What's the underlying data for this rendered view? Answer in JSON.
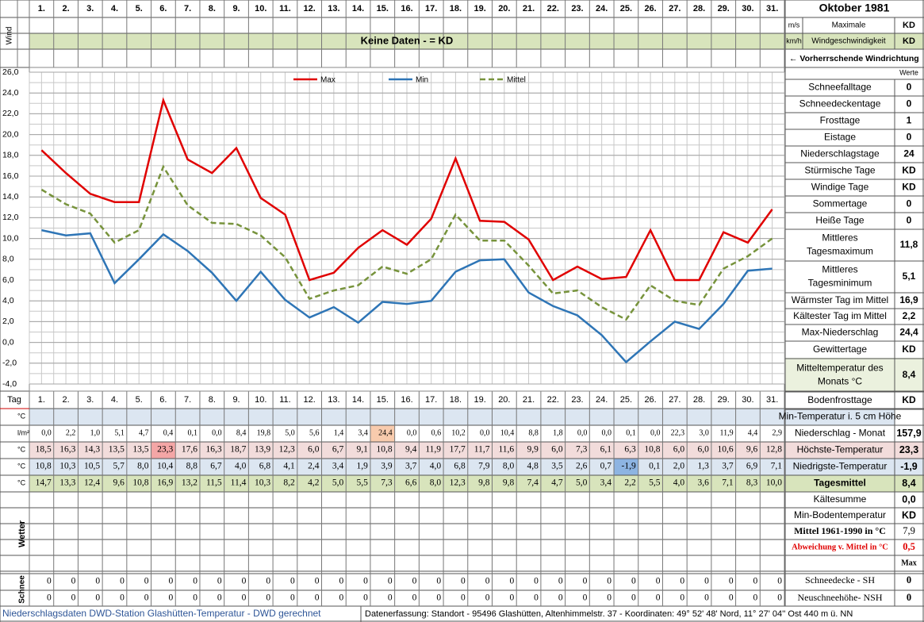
{
  "header": {
    "month": "Oktober 1981",
    "wind_row_label": "Wind",
    "no_data": "Keine Daten -  = KD",
    "wind_units": [
      "m/s",
      "km/h"
    ],
    "wind_label": [
      "Maximale",
      "Windgeschwindigkeit"
    ],
    "wind_values": [
      "KD",
      "KD"
    ],
    "wind_direction": "← Vorherrschende Windrichtung"
  },
  "chart_data": {
    "type": "line",
    "categories": [
      "1.",
      "2.",
      "3.",
      "4.",
      "5.",
      "6.",
      "7.",
      "8.",
      "9.",
      "10.",
      "11.",
      "12.",
      "13.",
      "14.",
      "15.",
      "16.",
      "17.",
      "18.",
      "19.",
      "20.",
      "21.",
      "22.",
      "23.",
      "24.",
      "25.",
      "26.",
      "27.",
      "28.",
      "29.",
      "30.",
      "31."
    ],
    "series": [
      {
        "name": "Max",
        "color": "#e00000",
        "dashed": false,
        "values": [
          18.5,
          16.3,
          14.3,
          13.5,
          13.5,
          23.3,
          17.6,
          16.3,
          18.7,
          13.9,
          12.3,
          6.0,
          6.7,
          9.1,
          10.8,
          9.4,
          11.9,
          17.7,
          11.7,
          11.6,
          9.9,
          6.0,
          7.3,
          6.1,
          6.3,
          10.8,
          6.0,
          6.0,
          10.6,
          9.6,
          12.8
        ]
      },
      {
        "name": "Min",
        "color": "#2e75b6",
        "dashed": false,
        "values": [
          10.8,
          10.3,
          10.5,
          5.7,
          8.0,
          10.4,
          8.8,
          6.7,
          4.0,
          6.8,
          4.1,
          2.4,
          3.4,
          1.9,
          3.9,
          3.7,
          4.0,
          6.8,
          7.9,
          8.0,
          4.8,
          3.5,
          2.6,
          0.7,
          -1.9,
          0.1,
          2.0,
          1.3,
          3.7,
          6.9,
          7.1
        ]
      },
      {
        "name": "Mittel",
        "color": "#77933c",
        "dashed": true,
        "values": [
          14.7,
          13.3,
          12.4,
          9.6,
          10.8,
          16.9,
          13.2,
          11.5,
          11.4,
          10.3,
          8.2,
          4.2,
          5.0,
          5.5,
          7.3,
          6.6,
          8.0,
          12.3,
          9.8,
          9.8,
          7.4,
          4.7,
          5.0,
          3.4,
          2.2,
          5.5,
          4.0,
          3.6,
          7.1,
          8.3,
          10.0
        ]
      }
    ],
    "ylim": [
      -4,
      26
    ],
    "yticks": [
      {
        "value": 26,
        "label": "26,0"
      },
      {
        "value": 24,
        "label": "24,0"
      },
      {
        "value": 22,
        "label": "22,0"
      },
      {
        "value": 20,
        "label": "20,0"
      },
      {
        "value": 18,
        "label": "18,0"
      },
      {
        "value": 16,
        "label": "16,0"
      },
      {
        "value": 14,
        "label": "14,0"
      },
      {
        "value": 12,
        "label": "12,0"
      },
      {
        "value": 10,
        "label": "10,0"
      },
      {
        "value": 8,
        "label": "8,0"
      },
      {
        "value": 6,
        "label": "6,0"
      },
      {
        "value": 4,
        "label": "4,0"
      },
      {
        "value": 2,
        "label": "2,0"
      },
      {
        "value": 0,
        "label": "0,0"
      },
      {
        "value": -2,
        "label": "-2,0"
      },
      {
        "value": -4,
        "label": "-4,0"
      }
    ],
    "grid": true,
    "legend": "top"
  },
  "table": {
    "day_label": "Tag",
    "units": [
      "°C",
      "l/m²",
      "°C",
      "°C",
      "°C"
    ],
    "precip": [
      "0,0",
      "2,2",
      "1,0",
      "5,1",
      "4,7",
      "0,4",
      "0,1",
      "0,0",
      "8,4",
      "19,8",
      "5,0",
      "5,6",
      "1,4",
      "3,4",
      "24,4",
      "0,0",
      "0,6",
      "10,2",
      "0,0",
      "10,4",
      "8,8",
      "1,8",
      "0,0",
      "0,0",
      "0,1",
      "0,0",
      "22,3",
      "3,0",
      "11,9",
      "4,4",
      "2,9"
    ],
    "max": [
      "18,5",
      "16,3",
      "14,3",
      "13,5",
      "13,5",
      "23,3",
      "17,6",
      "16,3",
      "18,7",
      "13,9",
      "12,3",
      "6,0",
      "6,7",
      "9,1",
      "10,8",
      "9,4",
      "11,9",
      "17,7",
      "11,7",
      "11,6",
      "9,9",
      "6,0",
      "7,3",
      "6,1",
      "6,3",
      "10,8",
      "6,0",
      "6,0",
      "10,6",
      "9,6",
      "12,8"
    ],
    "min": [
      "10,8",
      "10,3",
      "10,5",
      "5,7",
      "8,0",
      "10,4",
      "8,8",
      "6,7",
      "4,0",
      "6,8",
      "4,1",
      "2,4",
      "3,4",
      "1,9",
      "3,9",
      "3,7",
      "4,0",
      "6,8",
      "7,9",
      "8,0",
      "4,8",
      "3,5",
      "2,6",
      "0,7",
      "-1,9",
      "0,1",
      "2,0",
      "1,3",
      "3,7",
      "6,9",
      "7,1"
    ],
    "mean": [
      "14,7",
      "13,3",
      "12,4",
      "9,6",
      "10,8",
      "16,9",
      "13,2",
      "11,5",
      "11,4",
      "10,3",
      "8,2",
      "4,2",
      "5,0",
      "5,5",
      "7,3",
      "6,6",
      "8,0",
      "12,3",
      "9,8",
      "9,8",
      "7,4",
      "4,7",
      "5,0",
      "3,4",
      "2,2",
      "5,5",
      "4,0",
      "3,6",
      "7,1",
      "8,3",
      "10,0"
    ],
    "weather_label": "Wetter",
    "snow_label": "Schnee",
    "snow_depth": [
      0,
      0,
      0,
      0,
      0,
      0,
      0,
      0,
      0,
      0,
      0,
      0,
      0,
      0,
      0,
      0,
      0,
      0,
      0,
      0,
      0,
      0,
      0,
      0,
      0,
      0,
      0,
      0,
      0,
      0,
      0
    ],
    "new_snow": [
      0,
      0,
      0,
      0,
      0,
      0,
      0,
      0,
      0,
      0,
      0,
      0,
      0,
      0,
      0,
      0,
      0,
      0,
      0,
      0,
      0,
      0,
      0,
      0,
      0,
      0,
      0,
      0,
      0,
      0,
      0
    ]
  },
  "stats": {
    "header": "Werte",
    "items": [
      {
        "label": [
          "Schneefalltage"
        ],
        "value": 0
      },
      {
        "label": [
          "Schneedeckentage"
        ],
        "value": 0
      },
      {
        "label": [
          "Frosttage"
        ],
        "value": 1
      },
      {
        "label": [
          "Eistage"
        ],
        "value": 0
      },
      {
        "label": [
          "Niederschlagstage"
        ],
        "value": 24
      },
      {
        "label": [
          "Stürmische Tage"
        ],
        "value": "KD"
      },
      {
        "label": [
          "Windige Tage"
        ],
        "value": "KD"
      },
      {
        "label": [
          "Sommertage"
        ],
        "value": 0
      },
      {
        "label": [
          "Heiße Tage"
        ],
        "value": 0
      },
      {
        "label": [
          "Mittleres",
          "Tagesmaximum"
        ],
        "value": "11,8"
      },
      {
        "label": [
          "Mittleres",
          "Tagesminimum"
        ],
        "value": "5,1"
      },
      {
        "label": [
          "Wärmster Tag im Mittel"
        ],
        "value": "16,9"
      },
      {
        "label": [
          "Kältester Tag im Mittel"
        ],
        "value": "2,2"
      },
      {
        "label": [
          "Max-Niederschlag"
        ],
        "value": "24,4"
      },
      {
        "label": [
          "Gewittertage"
        ],
        "value": "KD"
      },
      {
        "label": [
          "Mitteltemperatur des",
          "Monats °C"
        ],
        "value": "8,4"
      },
      {
        "label": [
          "Bodenfrosttage"
        ],
        "value": "KD"
      }
    ]
  },
  "summary": [
    {
      "label": "Min-Temperatur i. 5 cm Höhe"
    },
    {
      "label": "Niederschlag - Monat",
      "value": "157,9"
    },
    {
      "label": "Höchste-Temperatur",
      "value": "23,3"
    },
    {
      "label": "Niedrigste-Temperatur",
      "value": "-1,9"
    },
    {
      "label": "Tagesmittel",
      "value": "8,4"
    },
    {
      "label": "Kältesumme",
      "value": "0,0"
    },
    {
      "label": "Min-Bodentemperatur",
      "value": "KD"
    },
    {
      "label": "Mittel 1961-1990 in °C",
      "value": "7,9"
    },
    {
      "label": "Abweichung v. Mittel in °C",
      "value": "0,5"
    },
    {
      "value": "Max"
    },
    {
      "label": "Schneedecke -   SH",
      "value": 0
    },
    {
      "label": "Neuschneehöhe- NSH",
      "value": 0
    }
  ],
  "footer": {
    "left": "Niederschlagsdaten DWD-Station Glashütten-Temperatur -  DWD gerechnet",
    "right": "Datenerfassung:  Standort -  95496  Glashütten, Altenhimmelstr. 37 - Koordinaten: 49° 52' 48' Nord,   11° 27' 04'' Ost   440 m ü. NN"
  }
}
